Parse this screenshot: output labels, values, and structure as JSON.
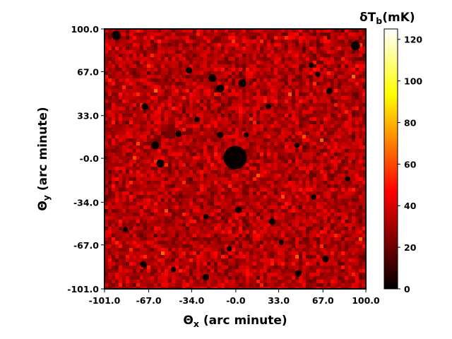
{
  "chart_data": {
    "type": "heatmap",
    "title": "",
    "xlabel": {
      "main": "Θ",
      "sub": "x",
      "rest": " (arc minute)"
    },
    "ylabel": {
      "main": "Θ",
      "sub": "y",
      "rest": " (arc minute)"
    },
    "xlim": [
      -101.0,
      100.0
    ],
    "ylim": [
      -101.0,
      100.0
    ],
    "x_ticks": [
      {
        "value": -101.0,
        "label": "-101.0"
      },
      {
        "value": -67.0,
        "label": "-67.0"
      },
      {
        "value": -34.0,
        "label": "-34.0"
      },
      {
        "value": 0.0,
        "label": "-0.0"
      },
      {
        "value": 33.0,
        "label": "33.0"
      },
      {
        "value": 67.0,
        "label": "67.0"
      },
      {
        "value": 100.0,
        "label": "100.0"
      }
    ],
    "y_ticks": [
      {
        "value": 100.0,
        "label": "100.0"
      },
      {
        "value": 67.0,
        "label": "67.0"
      },
      {
        "value": 33.0,
        "label": "33.0"
      },
      {
        "value": 0.0,
        "label": "-0.0"
      },
      {
        "value": -34.0,
        "label": "-34.0"
      },
      {
        "value": -67.0,
        "label": "-67.0"
      },
      {
        "value": -101.0,
        "label": "-101.0"
      }
    ],
    "colormap": "hot",
    "colorbar": {
      "label": {
        "main": "δT",
        "sub": "b",
        "rest": "(mK)"
      },
      "range": [
        0,
        125
      ],
      "ticks": [
        {
          "value": 0,
          "label": "0"
        },
        {
          "value": 20,
          "label": "20"
        },
        {
          "value": 40,
          "label": "40"
        },
        {
          "value": 60,
          "label": "60"
        },
        {
          "value": 80,
          "label": "80"
        },
        {
          "value": 100,
          "label": "100"
        },
        {
          "value": 120,
          "label": "120"
        }
      ]
    },
    "typical_values_mK": [
      15,
      50
    ],
    "ionized_regions": [
      {
        "x": -0.5,
        "y": 0.5,
        "r": 9.0
      },
      {
        "x": -92,
        "y": 95,
        "r": 3.5
      },
      {
        "x": 92,
        "y": 87,
        "r": 3.5
      },
      {
        "x": -18,
        "y": 62,
        "r": 3.0
      },
      {
        "x": 5,
        "y": 58,
        "r": 3.0
      },
      {
        "x": -12,
        "y": 54,
        "r": 3.0
      },
      {
        "x": -36,
        "y": 68,
        "r": 2.5
      },
      {
        "x": -62,
        "y": 10,
        "r": 3.0
      },
      {
        "x": -58,
        "y": -4,
        "r": 3.0
      },
      {
        "x": -70,
        "y": 40,
        "r": 2.5
      },
      {
        "x": -44,
        "y": 19,
        "r": 2.5
      },
      {
        "x": -12,
        "y": 18,
        "r": 2.5
      },
      {
        "x": 8,
        "y": 18,
        "r": 2.0
      },
      {
        "x": 47,
        "y": 10,
        "r": 2.0
      },
      {
        "x": 72,
        "y": 52,
        "r": 2.5
      },
      {
        "x": 63,
        "y": 65,
        "r": 2.0
      },
      {
        "x": 58,
        "y": 72,
        "r": 2.0
      },
      {
        "x": 2,
        "y": -40,
        "r": 2.5
      },
      {
        "x": -23,
        "y": -45,
        "r": 2.0
      },
      {
        "x": 28,
        "y": -49,
        "r": 2.5
      },
      {
        "x": -71,
        "y": -82,
        "r": 2.5
      },
      {
        "x": -23,
        "y": -92,
        "r": 2.5
      },
      {
        "x": 48,
        "y": -89,
        "r": 2.5
      },
      {
        "x": 69,
        "y": -78,
        "r": 2.5
      },
      {
        "x": -48,
        "y": -86,
        "r": 2.0
      },
      {
        "x": 86,
        "y": -16,
        "r": 2.0
      },
      {
        "x": -5,
        "y": -70,
        "r": 2.0
      },
      {
        "x": 35,
        "y": -65,
        "r": 2.0
      },
      {
        "x": -85,
        "y": -55,
        "r": 2.0
      },
      {
        "x": 60,
        "y": -30,
        "r": 2.0
      },
      {
        "x": -30,
        "y": 30,
        "r": 2.0
      },
      {
        "x": 25,
        "y": 40,
        "r": 2.0
      }
    ]
  }
}
